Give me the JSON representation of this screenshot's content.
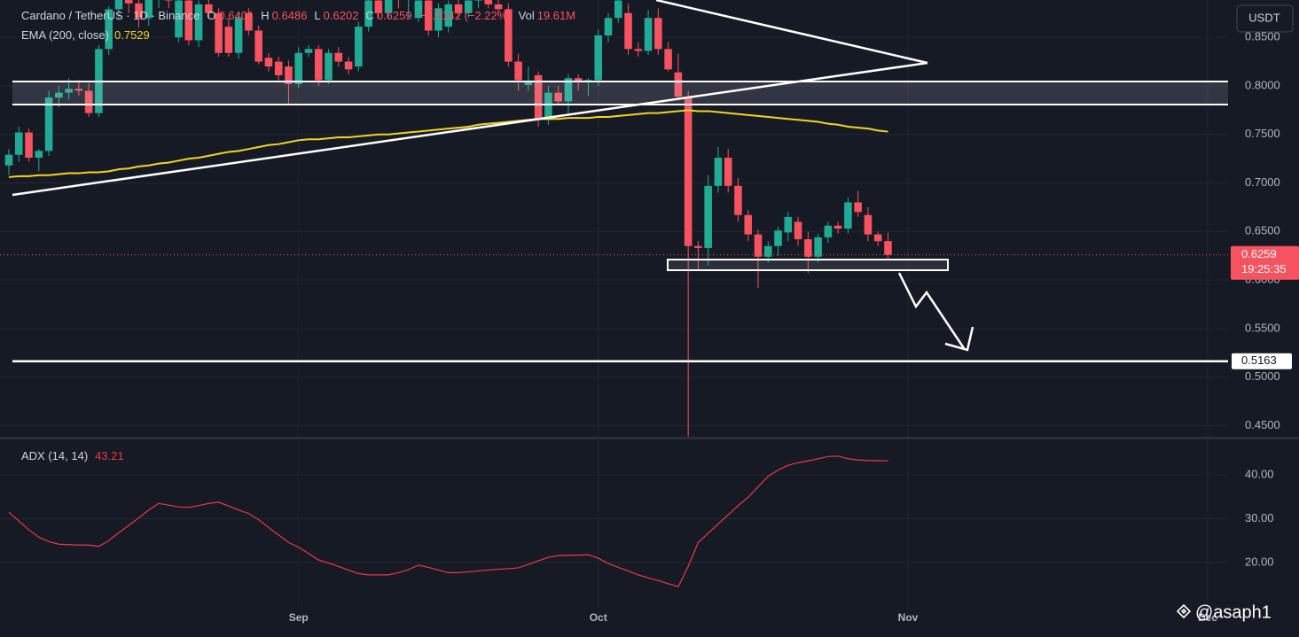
{
  "ui": {
    "currency": "USDT",
    "watermark": "@asaph1"
  },
  "chart_data": [
    {
      "type": "candlestick",
      "title": "Cardano / TetherUS · 1D · Binance",
      "ohlc_keys": [
        "O",
        "H",
        "L",
        "C"
      ],
      "change_label": "−0.0142 (−2.22%)",
      "volume_key": "Vol",
      "volume": {
        "value": 19610000,
        "label": "19.61M"
      },
      "countdown": "19:25:35",
      "up_color": "#22ab94",
      "down_color": "#f7525f",
      "open": [
        0.718,
        0.729,
        0.752,
        0.726,
        0.733,
        0.788,
        0.793,
        0.797,
        0.795,
        0.772,
        0.838,
        0.879,
        0.895,
        0.885,
        0.87,
        0.89,
        0.9,
        0.85,
        0.888,
        0.847,
        0.884,
        0.875,
        0.861,
        0.834,
        0.875,
        0.857,
        0.829,
        0.825,
        0.82,
        0.802,
        0.834,
        0.838,
        0.806,
        0.834,
        0.825,
        0.82,
        0.861,
        0.888,
        0.875,
        0.895,
        0.89,
        0.87,
        0.888,
        0.857,
        0.861,
        0.884,
        0.875,
        0.888,
        0.892,
        0.884,
        0.879,
        0.825,
        0.801,
        0.811,
        0.765,
        0.793,
        0.784,
        0.808,
        0.805,
        0.806,
        0.852,
        0.87,
        0.875,
        0.838,
        0.836,
        0.87,
        0.838,
        0.814,
        0.789,
        0.635,
        0.633,
        0.697,
        0.726,
        0.697,
        0.667,
        0.647,
        0.624,
        0.635,
        0.649,
        0.66,
        0.642,
        0.624,
        0.644,
        0.656,
        0.653,
        0.68,
        0.667,
        0.647,
        0.6401,
        null,
        null,
        null,
        null,
        null,
        null,
        null,
        null,
        null,
        null,
        null,
        null,
        null,
        null,
        null,
        null,
        null,
        null,
        null,
        null,
        null,
        null,
        null,
        null,
        null,
        null,
        null,
        null,
        null,
        null,
        null,
        null
      ],
      "high": [
        0.735,
        0.758,
        0.756,
        0.735,
        0.795,
        0.8,
        0.808,
        0.806,
        0.803,
        0.842,
        0.882,
        0.905,
        0.91,
        0.9,
        0.895,
        0.912,
        0.915,
        0.893,
        0.895,
        0.888,
        0.89,
        0.88,
        0.87,
        0.875,
        0.88,
        0.862,
        0.834,
        0.83,
        0.826,
        0.84,
        0.842,
        0.842,
        0.838,
        0.84,
        0.83,
        0.866,
        0.895,
        0.9,
        0.905,
        0.905,
        0.9,
        0.893,
        0.892,
        0.885,
        0.888,
        0.89,
        0.892,
        0.9,
        0.898,
        0.89,
        0.885,
        0.833,
        0.82,
        0.815,
        0.8,
        0.8,
        0.812,
        0.812,
        0.808,
        0.858,
        0.875,
        0.895,
        0.885,
        0.845,
        0.878,
        0.88,
        0.845,
        0.833,
        0.795,
        0.64,
        0.708,
        0.737,
        0.735,
        0.705,
        0.672,
        0.652,
        0.64,
        0.655,
        0.67,
        0.665,
        0.65,
        0.648,
        0.66,
        0.66,
        0.685,
        0.692,
        0.675,
        0.65,
        0.6486,
        null,
        null,
        null,
        null,
        null,
        null,
        null,
        null,
        null,
        null,
        null,
        null,
        null,
        null,
        null,
        null,
        null,
        null,
        null,
        null,
        null,
        null,
        null,
        null,
        null,
        null,
        null,
        null,
        null,
        null,
        null,
        null
      ],
      "low": [
        0.708,
        0.722,
        0.722,
        0.712,
        0.728,
        0.778,
        0.786,
        0.79,
        0.768,
        0.768,
        0.832,
        0.87,
        0.875,
        0.86,
        0.862,
        0.88,
        0.88,
        0.845,
        0.842,
        0.84,
        0.87,
        0.83,
        0.83,
        0.828,
        0.852,
        0.822,
        0.815,
        0.806,
        0.782,
        0.798,
        0.83,
        0.8,
        0.802,
        0.82,
        0.812,
        0.815,
        0.856,
        0.87,
        0.87,
        0.88,
        0.87,
        0.866,
        0.852,
        0.85,
        0.855,
        0.87,
        0.87,
        0.88,
        0.88,
        0.872,
        0.82,
        0.795,
        0.795,
        0.758,
        0.76,
        0.78,
        0.77,
        0.795,
        0.79,
        0.8,
        0.845,
        0.865,
        0.832,
        0.83,
        0.832,
        0.832,
        0.815,
        0.785,
        0.4387,
        0.61,
        0.615,
        0.69,
        0.69,
        0.66,
        0.64,
        0.592,
        0.618,
        0.625,
        0.64,
        0.635,
        0.607,
        0.618,
        0.638,
        0.648,
        0.648,
        0.665,
        0.64,
        0.635,
        0.6202,
        null,
        null,
        null,
        null,
        null,
        null,
        null,
        null,
        null,
        null,
        null,
        null,
        null,
        null,
        null,
        null,
        null,
        null,
        null,
        null,
        null,
        null,
        null,
        null,
        null,
        null,
        null,
        null,
        null,
        null,
        null,
        null
      ],
      "close": [
        0.729,
        0.752,
        0.726,
        0.733,
        0.788,
        0.793,
        0.797,
        0.795,
        0.772,
        0.838,
        0.879,
        0.895,
        0.885,
        0.87,
        0.89,
        0.9,
        0.888,
        0.888,
        0.847,
        0.884,
        0.875,
        0.834,
        0.834,
        0.87,
        0.857,
        0.825,
        0.82,
        0.811,
        0.802,
        0.834,
        0.838,
        0.806,
        0.834,
        0.825,
        0.817,
        0.861,
        0.888,
        0.875,
        0.895,
        0.89,
        0.892,
        0.888,
        0.857,
        0.88,
        0.884,
        0.875,
        0.888,
        0.892,
        0.884,
        0.879,
        0.825,
        0.806,
        0.804,
        0.765,
        0.793,
        0.784,
        0.808,
        0.805,
        0.806,
        0.852,
        0.87,
        0.888,
        0.838,
        0.836,
        0.87,
        0.838,
        0.817,
        0.789,
        0.635,
        0.633,
        0.697,
        0.726,
        0.697,
        0.667,
        0.647,
        0.624,
        0.635,
        0.651,
        0.665,
        0.642,
        0.624,
        0.644,
        0.656,
        0.653,
        0.68,
        0.67,
        0.647,
        0.64,
        0.6259,
        null,
        null,
        null,
        null,
        null,
        null,
        null,
        null,
        null,
        null,
        null,
        null,
        null,
        null,
        null,
        null,
        null,
        null,
        null,
        null,
        null,
        null,
        null,
        null,
        null,
        null,
        null,
        null,
        null,
        null,
        null,
        null
      ],
      "series": [
        {
          "name": "EMA (200, close)",
          "color": "#f5d320",
          "values": [
            0.706,
            0.707,
            0.707,
            0.708,
            0.708,
            0.709,
            0.71,
            0.71,
            0.711,
            0.711,
            0.712,
            0.714,
            0.715,
            0.717,
            0.718,
            0.72,
            0.721,
            0.723,
            0.725,
            0.726,
            0.728,
            0.73,
            0.732,
            0.733,
            0.735,
            0.737,
            0.739,
            0.74,
            0.742,
            0.744,
            0.745,
            0.745,
            0.746,
            0.747,
            0.747,
            0.748,
            0.749,
            0.75,
            0.75,
            0.751,
            0.752,
            0.753,
            0.754,
            0.755,
            0.756,
            0.757,
            0.758,
            0.76,
            0.761,
            0.762,
            0.763,
            0.764,
            0.765,
            0.766,
            0.766,
            0.766,
            0.767,
            0.767,
            0.767,
            0.768,
            0.768,
            0.769,
            0.77,
            0.771,
            0.772,
            0.772,
            0.773,
            0.774,
            0.775,
            0.774,
            0.774,
            0.773,
            0.772,
            0.771,
            0.77,
            0.769,
            0.768,
            0.767,
            0.766,
            0.765,
            0.764,
            0.763,
            0.761,
            0.76,
            0.758,
            0.757,
            0.756,
            0.754,
            0.7529,
            null,
            null,
            null,
            null,
            null,
            null,
            null,
            null,
            null,
            null,
            null,
            null,
            null,
            null,
            null,
            null,
            null,
            null,
            null,
            null,
            null,
            null,
            null,
            null,
            null,
            null,
            null,
            null,
            null,
            null,
            null,
            null
          ]
        }
      ],
      "levels": [
        0.5163
      ],
      "ylim": [
        0.4385,
        0.8885
      ],
      "yticks": [
        {
          "value": 0.45,
          "label": "0.4500"
        },
        {
          "value": 0.5,
          "label": "0.5000"
        },
        {
          "value": 0.55,
          "label": "0.5500"
        },
        {
          "value": 0.6,
          "label": "0.6000"
        },
        {
          "value": 0.65,
          "label": "0.6500"
        },
        {
          "value": 0.7,
          "label": "0.7000"
        },
        {
          "value": 0.75,
          "label": "0.7500"
        },
        {
          "value": 0.8,
          "label": "0.8000"
        },
        {
          "value": 0.85,
          "label": "0.8500"
        }
      ],
      "grid": true
    },
    {
      "type": "line",
      "title": "ADX (14, 14)",
      "categories": [
        null,
        null,
        null,
        null,
        null,
        null,
        null,
        null,
        null,
        null,
        null,
        null,
        null,
        null,
        null,
        null,
        null,
        null,
        null,
        null,
        null,
        null,
        null,
        null,
        null,
        null,
        null,
        null,
        null,
        "Sep",
        null,
        null,
        null,
        null,
        null,
        null,
        null,
        null,
        null,
        null,
        null,
        null,
        null,
        null,
        null,
        null,
        null,
        null,
        null,
        null,
        null,
        null,
        null,
        null,
        null,
        null,
        null,
        null,
        null,
        "Oct",
        null,
        null,
        null,
        null,
        null,
        null,
        null,
        null,
        null,
        null,
        null,
        null,
        null,
        null,
        null,
        null,
        null,
        null,
        null,
        null,
        null,
        null,
        null,
        null,
        null,
        null,
        null,
        null,
        null,
        null,
        "Nov",
        null,
        null,
        null,
        null,
        null,
        null,
        null,
        null,
        null,
        null,
        null,
        null,
        null,
        null,
        null,
        null,
        null,
        null,
        null,
        null,
        null,
        null,
        null,
        null,
        null,
        null,
        null,
        null,
        null,
        "Dec"
      ],
      "series": [
        {
          "name": "ADX (14, 14)",
          "color": "#f23645",
          "values": [
            31.5,
            29.5,
            27.5,
            25.8,
            24.8,
            24.2,
            24.1,
            24.0,
            24.0,
            23.7,
            25.0,
            26.8,
            28.5,
            30.2,
            32.0,
            33.5,
            33.1,
            32.7,
            32.6,
            33.0,
            33.5,
            33.8,
            32.9,
            32.0,
            31.2,
            29.8,
            28.0,
            26.3,
            24.6,
            23.5,
            22.1,
            20.6,
            19.9,
            19.1,
            18.3,
            17.5,
            17.2,
            17.2,
            17.2,
            17.7,
            18.4,
            19.4,
            18.9,
            18.3,
            17.7,
            17.7,
            17.9,
            18.1,
            18.3,
            18.5,
            18.6,
            18.8,
            19.6,
            20.4,
            21.2,
            21.6,
            21.7,
            21.7,
            21.8,
            21.0,
            19.8,
            18.9,
            18.1,
            17.2,
            16.5,
            15.9,
            15.2,
            14.5,
            19.1,
            24.6,
            26.7,
            28.8,
            30.9,
            33.0,
            34.9,
            37.3,
            39.7,
            41.1,
            42.2,
            42.8,
            43.2,
            43.7,
            44.2,
            44.3,
            43.7,
            43.4,
            43.3,
            43.25,
            43.21,
            null,
            null,
            null,
            null,
            null,
            null,
            null,
            null,
            null,
            null,
            null,
            null,
            null,
            null,
            null,
            null,
            null,
            null,
            null,
            null,
            null,
            null,
            null,
            null,
            null,
            null,
            null,
            null,
            null,
            null,
            null,
            null
          ]
        }
      ],
      "ylim": [
        9.9,
        47.9
      ],
      "yticks": [
        {
          "value": 20,
          "label": "20.00"
        },
        {
          "value": 30,
          "label": "30.00"
        },
        {
          "value": 40,
          "label": "40.00"
        }
      ],
      "grid": true
    }
  ]
}
